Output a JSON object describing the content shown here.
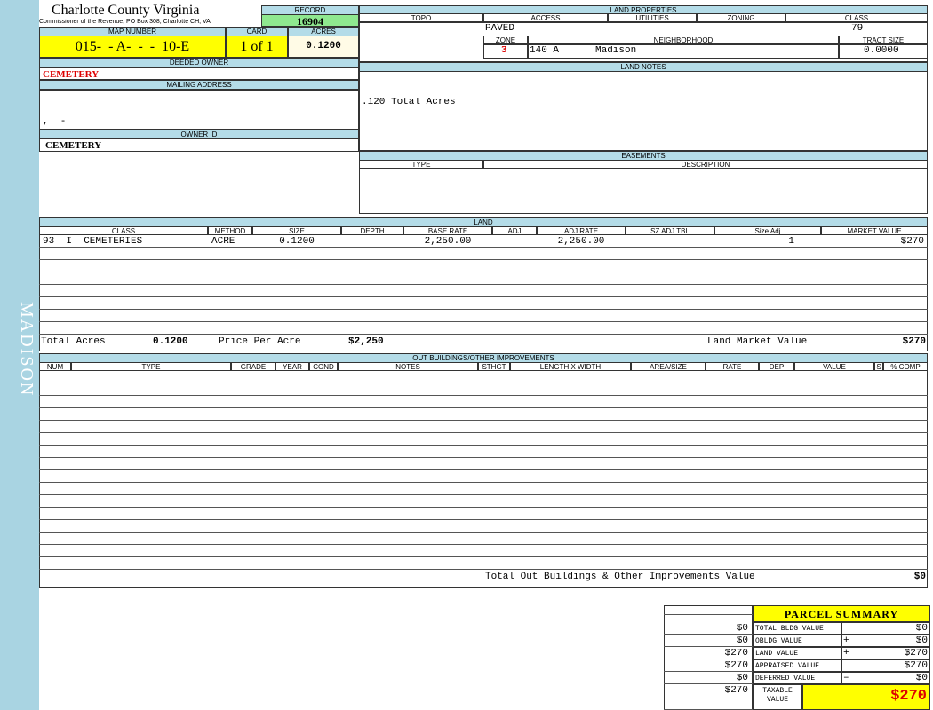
{
  "sidebar": "MADISON",
  "header": {
    "county": "Charlotte County Virginia",
    "office": "Commissioner of the Revenue, PO Box 308, Charlotte CH, VA"
  },
  "record": {
    "label": "RECORD",
    "value": "16904"
  },
  "map_number": {
    "label": "MAP NUMBER",
    "value": "015-  - A-  -  -  10-E"
  },
  "card": {
    "label": "CARD",
    "value": "1 of 1"
  },
  "acres": {
    "label": "ACRES",
    "value": "0.1200"
  },
  "deeded_owner": {
    "label": "DEEDED OWNER",
    "value": "CEMETERY"
  },
  "mailing_address": {
    "label": "MAILING ADDRESS",
    "value": ",  -"
  },
  "owner_id": {
    "label": "OWNER ID",
    "value": "CEMETERY"
  },
  "land_properties": {
    "title": "LAND PROPERTIES",
    "columns": [
      "TOPO",
      "ACCESS",
      "UTILITIES",
      "ZONING",
      "CLASS"
    ],
    "access": "PAVED",
    "class": "79",
    "zone_label": "ZONE",
    "zone": "3",
    "neighborhood_label": "NEIGHBORHOOD",
    "neighborhood_code": "140 A",
    "neighborhood": "Madison",
    "tract_size_label": "TRACT SIZE",
    "tract_size": "0.0000"
  },
  "land_notes": {
    "title": "LAND NOTES",
    "text": ".120 Total Acres"
  },
  "easements": {
    "title": "EASEMENTS",
    "columns": [
      "TYPE",
      "DESCRIPTION"
    ]
  },
  "land": {
    "title": "LAND",
    "columns": [
      "CLASS",
      "METHOD",
      "SIZE",
      "DEPTH",
      "BASE RATE",
      "ADJ",
      "ADJ RATE",
      "SZ ADJ TBL",
      "Size Adj",
      "MARKET VALUE"
    ],
    "rows": [
      [
        "93  I  CEMETERIES",
        "ACRE",
        "0.1200",
        null,
        "2,250.00",
        null,
        "2,250.00",
        null,
        "1",
        "$270"
      ]
    ],
    "total_acres_label": "Total Acres",
    "total_acres": "0.1200",
    "price_per_acre_label": "Price Per Acre",
    "price_per_acre": "$2,250",
    "market_value_label": "Land Market Value",
    "market_value": "$270"
  },
  "outbuildings": {
    "title": "OUT BUILDINGS/OTHER IMPROVEMENTS",
    "columns": [
      "NUM",
      "TYPE",
      "GRADE",
      "YEAR",
      "COND",
      "NOTES",
      "STHGT",
      "LENGTH X WIDTH",
      "AREA/SIZE",
      "RATE",
      "DEP",
      "VALUE",
      "S",
      "% COMP"
    ],
    "total_label": "Total Out Buildings & Other Improvements Value",
    "total": "$0"
  },
  "parcel_summary": {
    "title": "PARCEL SUMMARY",
    "rows": [
      {
        "prior": "$0",
        "label": "TOTAL BLDG VALUE",
        "value": "$0"
      },
      {
        "prior": "$0",
        "label": "OBLDG VALUE",
        "op": "+",
        "value": "$0"
      },
      {
        "prior": "$270",
        "label": "LAND VALUE",
        "op": "+",
        "value": "$270"
      },
      {
        "prior": "$270",
        "label": "APPRAISED VALUE",
        "value": "$270"
      },
      {
        "prior": "$0",
        "label": "DEFERRED VALUE",
        "op": "–",
        "value": "$0"
      },
      {
        "prior": "$270",
        "label": "TAXABLE VALUE",
        "value": "$270"
      }
    ]
  }
}
